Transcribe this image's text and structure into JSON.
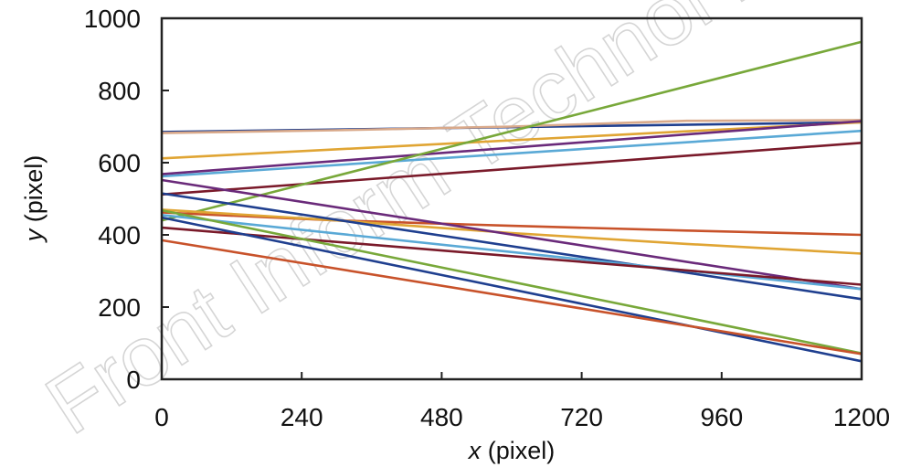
{
  "watermark": "Front Inform Technol E",
  "chart_data": {
    "type": "line",
    "xlabel_var": "x",
    "xlabel_unit": " (pixel)",
    "ylabel_var": "y",
    "ylabel_unit": " (pixel)",
    "xlim": [
      0,
      1200
    ],
    "ylim": [
      0,
      1000
    ],
    "xticks": [
      "0",
      "240",
      "480",
      "720",
      "960",
      "1200"
    ],
    "yticks": [
      "0",
      "200",
      "400",
      "600",
      "800",
      "1000"
    ],
    "grid": false,
    "legend": "none",
    "series": [
      {
        "color": "#1f3f8f",
        "x": [
          0,
          1200
        ],
        "y": [
          685,
          712
        ]
      },
      {
        "color": "#d9a98a",
        "x": [
          0,
          300,
          600,
          900,
          1200
        ],
        "y": [
          682,
          690,
          700,
          716,
          718
        ]
      },
      {
        "color": "#e0a534",
        "x": [
          0,
          1200
        ],
        "y": [
          612,
          712
        ]
      },
      {
        "color": "#5aa9d6",
        "x": [
          0,
          1200
        ],
        "y": [
          562,
          688
        ]
      },
      {
        "color": "#6a2a7a",
        "x": [
          0,
          1200
        ],
        "y": [
          568,
          715
        ]
      },
      {
        "color": "#7a1a2a",
        "x": [
          0,
          1200
        ],
        "y": [
          512,
          655
        ]
      },
      {
        "color": "#78a83a",
        "x": [
          0,
          1200
        ],
        "y": [
          440,
          935
        ]
      },
      {
        "color": "#c8522a",
        "x": [
          0,
          300,
          600,
          900,
          1200
        ],
        "y": [
          462,
          440,
          425,
          412,
          400
        ]
      },
      {
        "color": "#e0a534",
        "x": [
          0,
          300,
          600,
          900,
          1200
        ],
        "y": [
          470,
          440,
          405,
          375,
          348
        ]
      },
      {
        "color": "#6a2a7a",
        "x": [
          0,
          1200
        ],
        "y": [
          552,
          250
        ]
      },
      {
        "color": "#1f3f8f",
        "x": [
          0,
          1200
        ],
        "y": [
          515,
          222
        ]
      },
      {
        "color": "#5aa9d6",
        "x": [
          0,
          1200
        ],
        "y": [
          455,
          250
        ]
      },
      {
        "color": "#7a1a2a",
        "x": [
          0,
          1200
        ],
        "y": [
          420,
          262
        ]
      },
      {
        "color": "#78a83a",
        "x": [
          0,
          1200
        ],
        "y": [
          468,
          72
        ]
      },
      {
        "color": "#1f3f8f",
        "x": [
          0,
          1200
        ],
        "y": [
          448,
          50
        ]
      },
      {
        "color": "#c8522a",
        "x": [
          0,
          1200
        ],
        "y": [
          385,
          70
        ]
      }
    ]
  }
}
